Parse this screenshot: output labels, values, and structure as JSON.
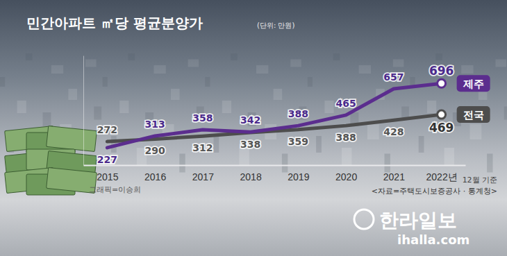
{
  "chart_data": {
    "type": "line",
    "title": "민간아파트 ㎡당 평균분양가",
    "subtitle": "(단위: 만원)",
    "categories": [
      "2015",
      "2016",
      "2017",
      "2018",
      "2019",
      "2020",
      "2021",
      "2022년"
    ],
    "series": [
      {
        "name": "제주",
        "color": "#5b2d8e",
        "values": [
          227,
          313,
          358,
          342,
          388,
          465,
          657,
          696
        ]
      },
      {
        "name": "전국",
        "color": "#4d4d4d",
        "values": [
          272,
          290,
          312,
          338,
          359,
          388,
          428,
          469
        ]
      }
    ],
    "ylim": [
      100,
      900
    ],
    "tick_labels": "x",
    "data_labels": true,
    "grid": false,
    "annotations": {
      "note": "12월 기준",
      "credit": "그래픽=이승희",
      "source": "<자료=주택도시보증공사 · 통계청>",
      "logo": "한라일보",
      "url": "ihalla.com"
    }
  }
}
